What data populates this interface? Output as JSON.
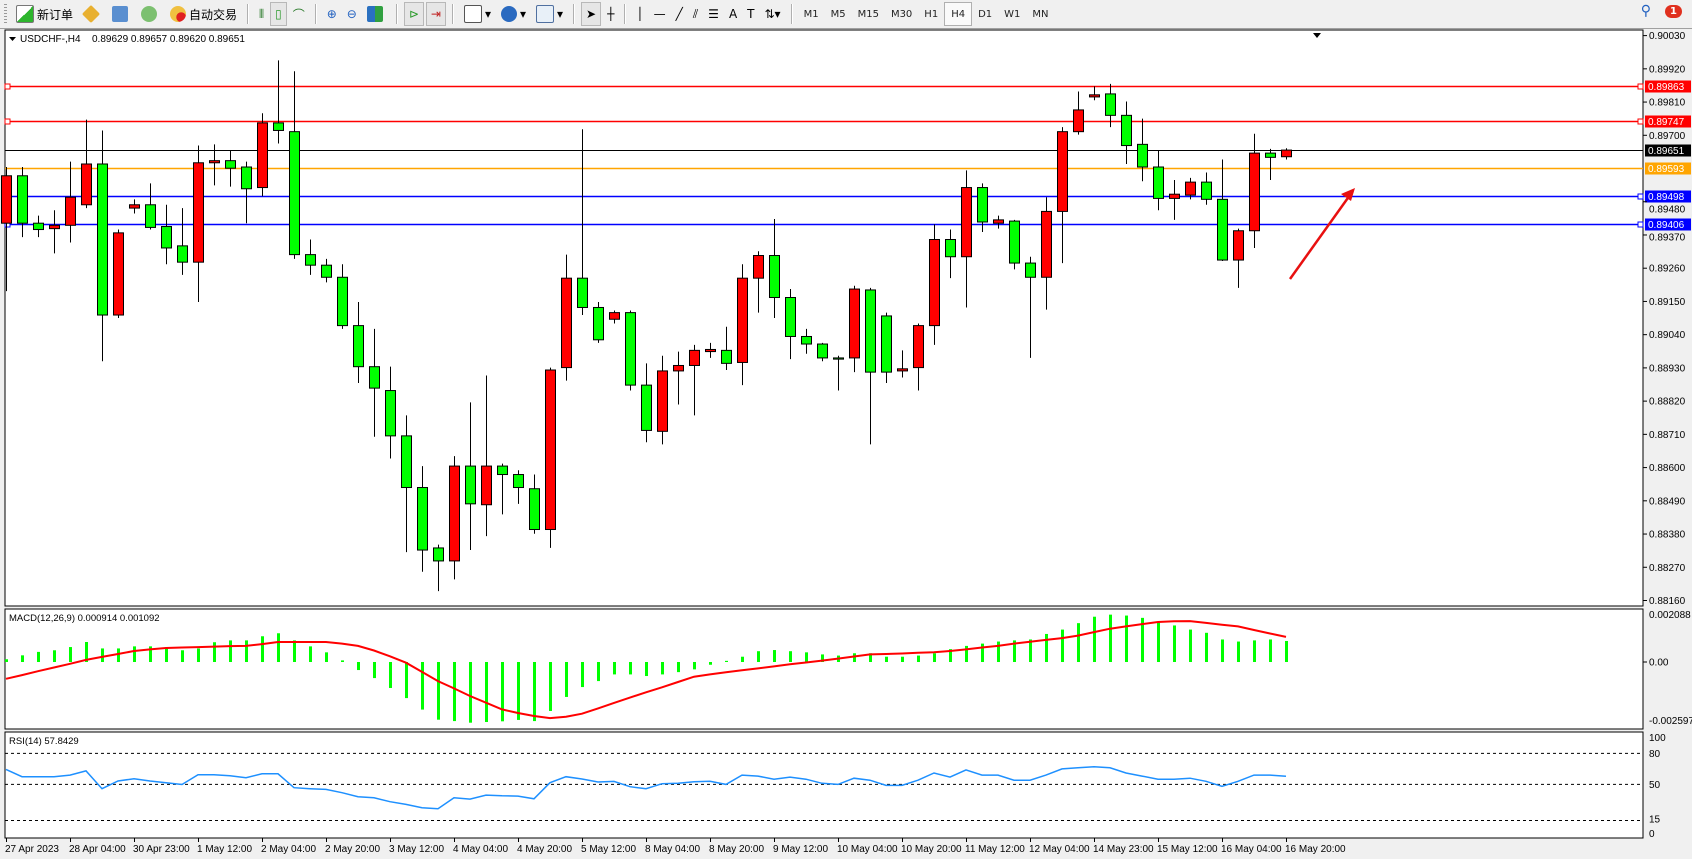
{
  "toolbar": {
    "new_order": "新订单",
    "auto_trading": "自动交易",
    "timeframes": [
      "M1",
      "M5",
      "M15",
      "M30",
      "H1",
      "H4",
      "D1",
      "W1",
      "MN"
    ],
    "active_timeframe": "H4",
    "notification_count": "1"
  },
  "main": {
    "symbol_label": "USDCHF-,H4",
    "ohlc_label": "0.89629 0.89657 0.89620 0.89651",
    "price_ticks": [
      "0.90030",
      "0.89920",
      "0.89810",
      "0.89700",
      "0.89480",
      "0.89370",
      "0.89260",
      "0.89150",
      "0.89040",
      "0.88930",
      "0.88820",
      "0.88710",
      "0.88600",
      "0.88490",
      "0.88380",
      "0.88270",
      "0.88160"
    ],
    "hlines": [
      {
        "price": "0.89863",
        "color": "#ff0000",
        "text_color": "#ffffff"
      },
      {
        "price": "0.89747",
        "color": "#ff0000",
        "text_color": "#ffffff"
      },
      {
        "price": "0.89651",
        "color": "#000000",
        "text_color": "#ffffff"
      },
      {
        "price": "0.89593",
        "color": "#ffa500",
        "text_color": "#ffffff"
      },
      {
        "price": "0.89498",
        "color": "#0000ff",
        "text_color": "#ffffff"
      },
      {
        "price": "0.89406",
        "color": "#0000ff",
        "text_color": "#ffffff"
      }
    ],
    "bull_color": "#ff0000",
    "bear_color": "#00ff00"
  },
  "macd": {
    "label": "MACD(12,26,9) 0.000914 0.001092",
    "ticks": [
      "0.002088",
      "0.00",
      "-0.002597"
    ],
    "hist_color": "#00ff00",
    "signal_color": "#ff0000"
  },
  "rsi": {
    "label": "RSI(14) 57.8429",
    "ticks": [
      "100",
      "80",
      "50",
      "15",
      "0"
    ],
    "levels": [
      80,
      50,
      15
    ],
    "line_color": "#1e90ff"
  },
  "time_labels": [
    "27 Apr 2023",
    "28 Apr 04:00",
    "30 Apr 23:00",
    "1 May 12:00",
    "2 May 04:00",
    "2 May 20:00",
    "3 May 12:00",
    "4 May 04:00",
    "4 May 20:00",
    "5 May 12:00",
    "8 May 04:00",
    "8 May 20:00",
    "9 May 12:00",
    "10 May 04:00",
    "10 May 20:00",
    "11 May 12:00",
    "12 May 04:00",
    "14 May 23:00",
    "15 May 12:00",
    "16 May 04:00",
    "16 May 20:00"
  ],
  "chart_data": {
    "type": "candlestick",
    "symbol": "USDCHF-",
    "timeframe": "H4",
    "ylim": [
      0.8816,
      0.9003
    ],
    "candles_ohlc": [
      [
        0.89409,
        0.89595,
        0.89184,
        0.89566
      ],
      [
        0.89566,
        0.89595,
        0.89363,
        0.89409
      ],
      [
        0.89409,
        0.89434,
        0.89363,
        0.89388
      ],
      [
        0.89391,
        0.89452,
        0.89309,
        0.89402
      ],
      [
        0.89402,
        0.89613,
        0.89345,
        0.89495
      ],
      [
        0.8947,
        0.89752,
        0.89459,
        0.89605
      ],
      [
        0.89605,
        0.89716,
        0.88952,
        0.89105
      ],
      [
        0.89105,
        0.89388,
        0.89095,
        0.89377
      ],
      [
        0.89459,
        0.89488,
        0.89441,
        0.8947
      ],
      [
        0.8947,
        0.89541,
        0.89388,
        0.89395
      ],
      [
        0.89398,
        0.8947,
        0.89273,
        0.89327
      ],
      [
        0.89334,
        0.89459,
        0.89238,
        0.8928
      ],
      [
        0.8928,
        0.89666,
        0.89148,
        0.89609
      ],
      [
        0.89609,
        0.8967,
        0.89534,
        0.89616
      ],
      [
        0.89616,
        0.89648,
        0.8953,
        0.89591
      ],
      [
        0.89595,
        0.89613,
        0.89409,
        0.89523
      ],
      [
        0.89527,
        0.89773,
        0.89498,
        0.89741
      ],
      [
        0.89741,
        0.89948,
        0.89673,
        0.89716
      ],
      [
        0.89712,
        0.89912,
        0.89291,
        0.89305
      ],
      [
        0.89305,
        0.89355,
        0.89238,
        0.8927
      ],
      [
        0.8927,
        0.89291,
        0.89213,
        0.8923
      ],
      [
        0.8923,
        0.89273,
        0.89059,
        0.8907
      ],
      [
        0.8907,
        0.89148,
        0.8888,
        0.88934
      ],
      [
        0.88934,
        0.89059,
        0.88702,
        0.88863
      ],
      [
        0.88855,
        0.88934,
        0.8863,
        0.88705
      ],
      [
        0.88705,
        0.88773,
        0.8832,
        0.88534
      ],
      [
        0.88534,
        0.88605,
        0.88255,
        0.88327
      ],
      [
        0.88334,
        0.88345,
        0.88191,
        0.88291
      ],
      [
        0.88291,
        0.88638,
        0.8823,
        0.88605
      ],
      [
        0.88605,
        0.88816,
        0.88327,
        0.8848
      ],
      [
        0.88477,
        0.88905,
        0.88373,
        0.88605
      ],
      [
        0.88605,
        0.88613,
        0.88445,
        0.88577
      ],
      [
        0.88577,
        0.88591,
        0.8848,
        0.88534
      ],
      [
        0.8853,
        0.88577,
        0.88381,
        0.88395
      ],
      [
        0.88395,
        0.88931,
        0.88334,
        0.88923
      ],
      [
        0.88931,
        0.89305,
        0.88888,
        0.89227
      ],
      [
        0.89227,
        0.8972,
        0.89105,
        0.8913
      ],
      [
        0.8913,
        0.89148,
        0.89013,
        0.89023
      ],
      [
        0.89091,
        0.8912,
        0.89077,
        0.89113
      ],
      [
        0.89113,
        0.8912,
        0.88855,
        0.88873
      ],
      [
        0.88873,
        0.88945,
        0.88684,
        0.88723
      ],
      [
        0.8872,
        0.8897,
        0.88677,
        0.8892
      ],
      [
        0.8892,
        0.88984,
        0.88809,
        0.88938
      ],
      [
        0.88938,
        0.89006,
        0.88773,
        0.88988
      ],
      [
        0.88984,
        0.89013,
        0.88963,
        0.88991
      ],
      [
        0.88988,
        0.89066,
        0.88923,
        0.88945
      ],
      [
        0.88948,
        0.89273,
        0.88873,
        0.89227
      ],
      [
        0.89227,
        0.89316,
        0.89113,
        0.89302
      ],
      [
        0.89302,
        0.89423,
        0.89095,
        0.89163
      ],
      [
        0.89163,
        0.89191,
        0.88959,
        0.89034
      ],
      [
        0.89034,
        0.89059,
        0.88977,
        0.89009
      ],
      [
        0.89009,
        0.89013,
        0.88952,
        0.88963
      ],
      [
        0.88963,
        0.8897,
        0.88855,
        0.88959
      ],
      [
        0.88963,
        0.89202,
        0.88916,
        0.89191
      ],
      [
        0.89188,
        0.89195,
        0.88677,
        0.88916
      ],
      [
        0.89102,
        0.89113,
        0.8888,
        0.88916
      ],
      [
        0.8892,
        0.88988,
        0.88898,
        0.88927
      ],
      [
        0.88931,
        0.89077,
        0.88855,
        0.8907
      ],
      [
        0.8907,
        0.89405,
        0.89006,
        0.89355
      ],
      [
        0.89355,
        0.89388,
        0.89227,
        0.89298
      ],
      [
        0.89298,
        0.89584,
        0.8913,
        0.89527
      ],
      [
        0.89527,
        0.89541,
        0.8938,
        0.89413
      ],
      [
        0.89409,
        0.89434,
        0.89391,
        0.8942
      ],
      [
        0.89416,
        0.8942,
        0.89256,
        0.89277
      ],
      [
        0.89277,
        0.89298,
        0.88963,
        0.8923
      ],
      [
        0.8923,
        0.89495,
        0.89123,
        0.89448
      ],
      [
        0.89448,
        0.89727,
        0.89277,
        0.89712
      ],
      [
        0.89712,
        0.89845,
        0.89702,
        0.89784
      ],
      [
        0.89827,
        0.89862,
        0.89816,
        0.89834
      ],
      [
        0.89837,
        0.8987,
        0.89727,
        0.89766
      ],
      [
        0.89766,
        0.89812,
        0.89605,
        0.89666
      ],
      [
        0.8967,
        0.89755,
        0.89548,
        0.89595
      ],
      [
        0.89595,
        0.89648,
        0.89452,
        0.89491
      ],
      [
        0.89491,
        0.89552,
        0.8942,
        0.89505
      ],
      [
        0.89502,
        0.89559,
        0.89488,
        0.89545
      ],
      [
        0.89545,
        0.89577,
        0.8947,
        0.89488
      ],
      [
        0.89488,
        0.8962,
        0.89284,
        0.89287
      ],
      [
        0.89287,
        0.89391,
        0.89195,
        0.89384
      ],
      [
        0.89384,
        0.89705,
        0.89327,
        0.89641
      ],
      [
        0.89641,
        0.89655,
        0.89552,
        0.89627
      ],
      [
        0.89629,
        0.89657,
        0.8962,
        0.89651
      ]
    ],
    "macd_hist": [
      0.00012,
      0.00029,
      0.00044,
      0.00051,
      0.00065,
      0.00087,
      0.00059,
      0.00059,
      0.00068,
      0.00068,
      0.00059,
      0.00051,
      0.00059,
      0.00086,
      0.00094,
      0.00094,
      0.00112,
      0.00125,
      0.00094,
      0.00068,
      0.00042,
      7e-05,
      -0.00035,
      -0.0007,
      -0.00113,
      -0.00157,
      -0.00207,
      -0.00251,
      -0.00257,
      -0.00264,
      -0.00261,
      -0.00258,
      -0.00252,
      -0.00257,
      -0.00213,
      -0.00152,
      -0.00109,
      -0.00083,
      -0.00054,
      -0.00054,
      -0.00061,
      -0.00054,
      -0.00044,
      -0.00032,
      -0.00012,
      5e-05,
      0.00023,
      0.00047,
      0.00052,
      0.00047,
      0.00042,
      0.00033,
      0.00028,
      0.00038,
      0.00038,
      0.00023,
      0.00023,
      0.00028,
      0.00038,
      0.00056,
      0.0007,
      0.0008,
      0.00089,
      0.00094,
      0.00098,
      0.00122,
      0.00141,
      0.00169,
      0.00197,
      0.00206,
      0.00202,
      0.00192,
      0.00174,
      0.00159,
      0.00141,
      0.00127,
      0.00098,
      0.00089,
      0.00094,
      0.00098,
      0.000914
    ],
    "macd_signal": [
      -0.00073,
      -0.00057,
      -0.0004,
      -0.00024,
      -8e-05,
      9e-05,
      0.00022,
      0.00035,
      0.00048,
      0.00055,
      0.00061,
      0.00063,
      0.00065,
      0.00067,
      0.00069,
      0.0007,
      0.00078,
      0.00087,
      0.00087,
      0.00087,
      0.00087,
      0.0008,
      0.0007,
      0.0005,
      0.00025,
      -3e-05,
      -0.00043,
      -0.00083,
      -0.00115,
      -0.00148,
      -0.00177,
      -0.00206,
      -0.00222,
      -0.00235,
      -0.00244,
      -0.00238,
      -0.00225,
      -0.00202,
      -0.00178,
      -0.00155,
      -0.00132,
      -0.0011,
      -0.00087,
      -0.00064,
      -0.00054,
      -0.00045,
      -0.00036,
      -0.00028,
      -0.00019,
      -0.0001,
      -2e-05,
      6e-05,
      0.00015,
      0.00024,
      0.00033,
      0.00035,
      0.00037,
      0.0004,
      0.00042,
      0.00048,
      0.00055,
      0.00063,
      0.0007,
      0.0008,
      0.00088,
      0.00096,
      0.00104,
      0.00115,
      0.0013,
      0.00145,
      0.00155,
      0.00165,
      0.00174,
      0.00177,
      0.00178,
      0.0017,
      0.00162,
      0.00155,
      0.00139,
      0.00124,
      0.001092
    ],
    "macd_ylim": [
      -0.002597,
      0.002088
    ],
    "rsi": [
      64.5,
      57.4,
      57.4,
      57.4,
      59,
      63,
      45.8,
      53.2,
      55.5,
      53.2,
      51.6,
      49.9,
      59.3,
      59.3,
      58.3,
      56.4,
      60.2,
      60.2,
      46.8,
      45.8,
      45.1,
      41.9,
      38.0,
      37.0,
      33.2,
      30.6,
      27.4,
      26.4,
      37.0,
      35.7,
      39.6,
      38.9,
      38.6,
      36.0,
      51.6,
      57.4,
      55.2,
      52.3,
      52.9,
      47.7,
      45.8,
      50.6,
      51.0,
      52.6,
      53,
      50,
      59,
      58,
      55,
      57,
      55,
      51,
      50,
      56,
      54,
      49,
      49,
      54,
      61,
      57,
      64,
      59,
      59,
      54,
      54,
      59,
      65,
      66,
      67,
      66,
      61,
      58,
      55,
      55,
      56,
      53,
      48,
      53,
      59,
      59,
      57.8429
    ],
    "rsi_ylim": [
      0,
      100
    ]
  }
}
